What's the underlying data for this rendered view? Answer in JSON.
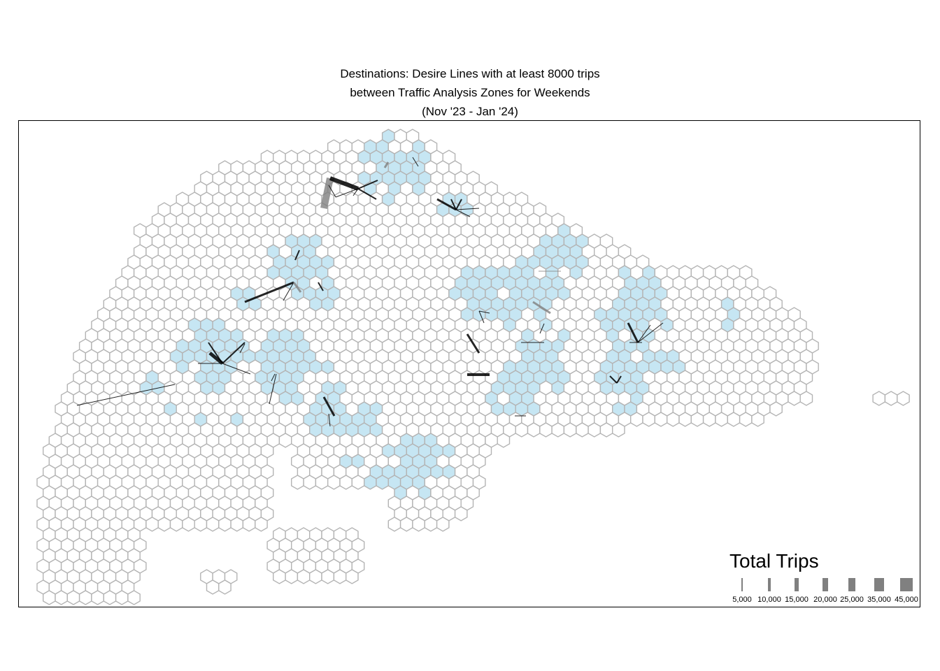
{
  "title": {
    "line1": "Destinations: Desire Lines with at least 8000 trips",
    "line2": "between Traffic Analysis Zones for Weekends",
    "line3": "(Nov '23 - Jan '24)"
  },
  "legend": {
    "title": "Total Trips",
    "items": [
      {
        "label": "5,000",
        "value": 5000
      },
      {
        "label": "10,000",
        "value": 10000
      },
      {
        "label": "15,000",
        "value": 15000
      },
      {
        "label": "20,000",
        "value": 20000
      },
      {
        "label": "25,000",
        "value": 25000
      },
      {
        "label": "35,000",
        "value": 35000
      },
      {
        "label": "45,000",
        "value": 45000
      }
    ]
  },
  "colors": {
    "hex_outline": "#b4b4b4",
    "destination_fill": "#c6e6f3",
    "line_dark": "#000000",
    "line_grey": "#808080"
  }
}
